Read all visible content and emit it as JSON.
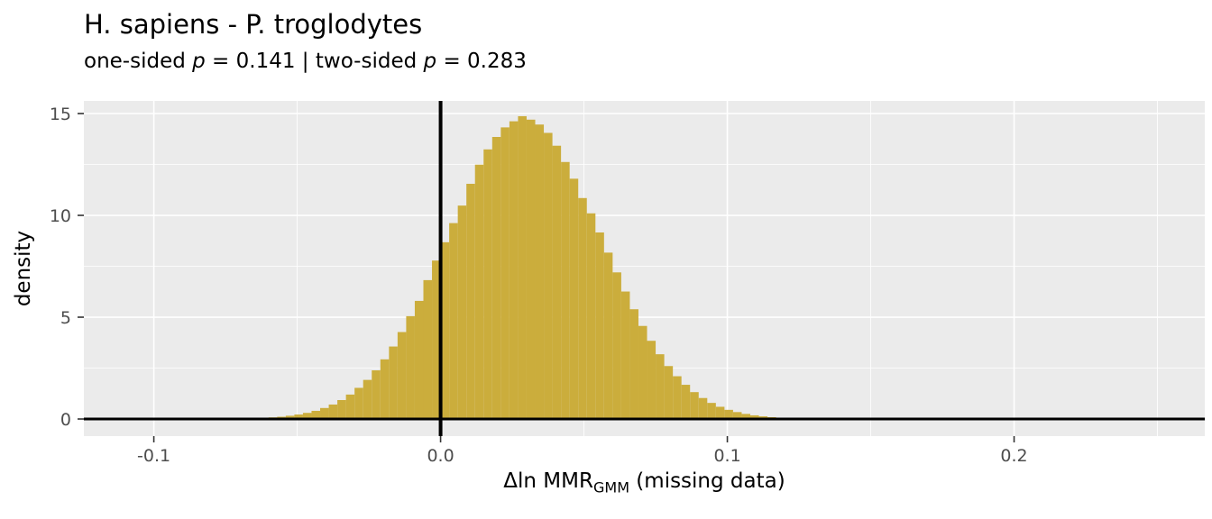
{
  "chart_data": {
    "type": "bar",
    "variant": "histogram-density",
    "title": "H. sapiens - P. troglodytes",
    "subtitle_text": "one-sided p = 0.141 | two-sided p = 0.283",
    "subtitle_parts": [
      {
        "text": "one-sided ",
        "italic": false
      },
      {
        "text": "p",
        "italic": true
      },
      {
        "text": " = 0.141 | two-sided ",
        "italic": false
      },
      {
        "text": "p",
        "italic": true
      },
      {
        "text": " = 0.283",
        "italic": false
      }
    ],
    "p_values": {
      "one_sided": 0.141,
      "two_sided": 0.283
    },
    "ylabel": "density",
    "xlabel_text": "Δln MMR_GMM (missing data)",
    "xlabel_parts": [
      {
        "text": "Δln MMR",
        "sub": false
      },
      {
        "text": "GMM",
        "sub": true
      },
      {
        "text": " (missing data)",
        "sub": false
      }
    ],
    "x_major_ticks": [
      {
        "value": -0.1,
        "label": "-0.1"
      },
      {
        "value": 0.0,
        "label": "0.0"
      },
      {
        "value": 0.1,
        "label": "0.1"
      },
      {
        "value": 0.2,
        "label": "0.2"
      }
    ],
    "x_minor_ticks": [
      -0.05,
      0.05,
      0.15,
      0.25
    ],
    "y_major_ticks": [
      {
        "value": 0,
        "label": "0"
      },
      {
        "value": 5,
        "label": "5"
      },
      {
        "value": 10,
        "label": "10"
      },
      {
        "value": 15,
        "label": "15"
      }
    ],
    "y_minor_ticks": [
      2.5,
      7.5,
      12.5
    ],
    "xlim": [
      -0.1244,
      0.2665
    ],
    "ylim": [
      -0.84,
      15.62
    ],
    "grid": true,
    "legend": false,
    "reference_lines": {
      "vline_x": 0,
      "hline_y": 0
    },
    "histogram": {
      "bin_start": -0.063,
      "bin_width": 0.003,
      "heights": [
        0.05,
        0.08,
        0.11,
        0.16,
        0.22,
        0.3,
        0.4,
        0.54,
        0.71,
        0.93,
        1.2,
        1.53,
        1.92,
        2.39,
        2.93,
        3.56,
        4.27,
        5.05,
        5.8,
        6.82,
        7.78,
        8.68,
        9.62,
        10.48,
        11.55,
        12.49,
        13.24,
        13.85,
        14.32,
        14.62,
        14.87,
        14.7,
        14.46,
        14.05,
        13.42,
        12.62,
        11.8,
        10.85,
        10.1,
        9.16,
        8.17,
        7.2,
        6.26,
        5.39,
        4.57,
        3.84,
        3.18,
        2.6,
        2.1,
        1.68,
        1.32,
        1.03,
        0.79,
        0.6,
        0.45,
        0.34,
        0.25,
        0.18,
        0.13,
        0.09
      ]
    },
    "colors": {
      "bar_fill": "#CBAD3C",
      "panel_background": "#EBEBEB",
      "gridline": "#FFFFFF",
      "reference_line": "#000000",
      "tick_mark": "#333333",
      "tick_label": "#4D4D4D",
      "text": "#000000",
      "figure_background": "#FFFFFF"
    }
  }
}
